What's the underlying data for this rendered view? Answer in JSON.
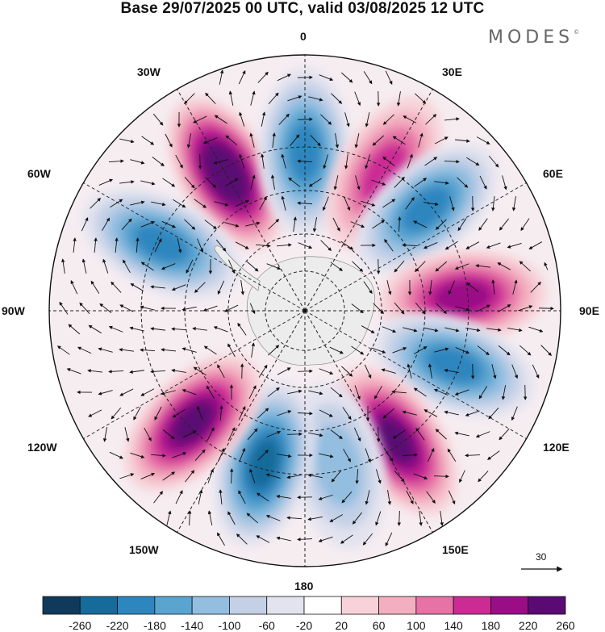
{
  "title": "Base 29/07/2025 00 UTC, valid 03/08/2025 12 UTC",
  "brand": "MODES",
  "brand_mark": "©",
  "map": {
    "projection": "polar-stereographic-south",
    "field_description": "shaded anomaly field with wind vectors over Antarctica and the Southern Ocean",
    "longitude_labels": {
      "top": "0",
      "top_right": "30E",
      "upper_right": "60E",
      "right": "90E",
      "lower_right": "120E",
      "bottom_right": "150E",
      "bottom": "180",
      "bottom_left": "150W",
      "lower_left": "120W",
      "left": "90W",
      "upper_left": "60W",
      "top_left": "30W"
    },
    "reference_vector": "30",
    "anomaly_centers": [
      {
        "lon": -30,
        "sign": "positive",
        "value": 260
      },
      {
        "lon": 0,
        "sign": "negative",
        "value": -180
      },
      {
        "lon": 30,
        "sign": "positive",
        "value": 140
      },
      {
        "lon": 50,
        "sign": "negative",
        "value": -180
      },
      {
        "lon": 85,
        "sign": "positive",
        "value": 180
      },
      {
        "lon": 110,
        "sign": "negative",
        "value": -180
      },
      {
        "lon": 145,
        "sign": "positive",
        "value": 220
      },
      {
        "lon": 168,
        "sign": "negative",
        "value": -100
      },
      {
        "lon": -165,
        "sign": "negative",
        "value": -220
      },
      {
        "lon": -135,
        "sign": "positive",
        "value": 220
      },
      {
        "lon": -65,
        "sign": "negative",
        "value": -180
      }
    ]
  },
  "colorbar": {
    "ticks": [
      "-260",
      "-220",
      "-180",
      "-140",
      "-100",
      "-60",
      "-20",
      "20",
      "60",
      "100",
      "140",
      "180",
      "220",
      "260"
    ],
    "colors": [
      "#0f3a5c",
      "#176b9a",
      "#2e86bf",
      "#5aa4d0",
      "#93bee0",
      "#c3d0e6",
      "#e3e3ef",
      "#ffffff",
      "#f7d3d9",
      "#f3aec0",
      "#e672a6",
      "#cc2b94",
      "#9a0d87",
      "#5a0a73"
    ]
  }
}
